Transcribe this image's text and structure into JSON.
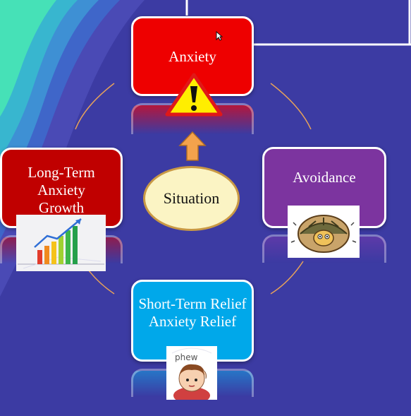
{
  "diagram": {
    "center": "Situation",
    "nodes": {
      "top": "Anxiety",
      "right": "Avoidance",
      "bottom": "Short-Term Relief Anxiety Relief",
      "left": "Long-Term Anxiety Growth"
    },
    "images": {
      "warning": "warning-icon",
      "turtle": "turtle-in-shell-icon",
      "phew": "phew-relief-boy-icon",
      "growth": "rising-bar-chart-icon"
    },
    "phew_caption": "phew",
    "colors": {
      "background": "#3c3ba3",
      "anxiety": "#ee0000",
      "avoidance": "#7c349f",
      "relief": "#00a8ea",
      "growth": "#c00000",
      "situation": "#fbf4c4",
      "arrow": "#f4a24c"
    }
  }
}
